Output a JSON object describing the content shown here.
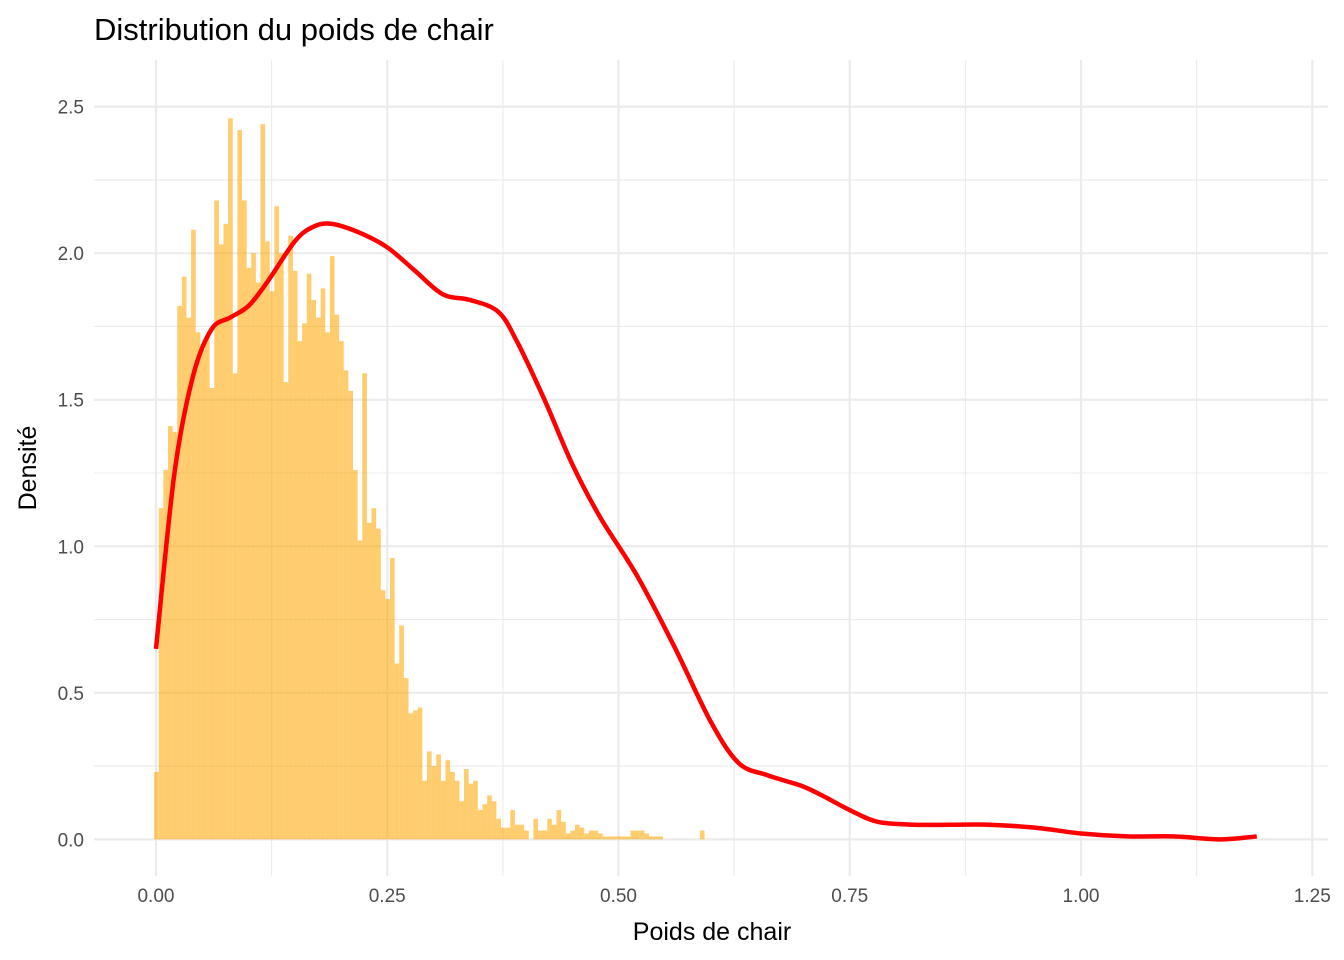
{
  "chart_data": {
    "type": "histogram",
    "title": "Distribution du poids de chair",
    "xlabel": "Poids de chair",
    "ylabel": "Densité",
    "xlim": [
      -0.067,
      1.267
    ],
    "ylim": [
      -0.125,
      2.625
    ],
    "x_ticks": [
      0.0,
      0.25,
      0.5,
      0.75,
      1.0,
      1.25
    ],
    "x_tick_labels": [
      "0.00",
      "0.25",
      "0.50",
      "0.75",
      "1.00",
      "1.25"
    ],
    "y_ticks": [
      0.0,
      0.5,
      1.0,
      1.5,
      2.0,
      2.5
    ],
    "y_tick_labels": [
      "0.0",
      "0.5",
      "1.0",
      "1.5",
      "2.0",
      "2.5"
    ],
    "grid": true,
    "legend": "none",
    "histogram": {
      "bin_start": -0.002,
      "bin_width": 0.005,
      "fill_color": "#FFA500",
      "fill_opacity": 0.57,
      "values": [
        0.23,
        1.13,
        1.26,
        1.41,
        1.39,
        1.82,
        1.92,
        1.78,
        2.08,
        1.73,
        1.67,
        1.72,
        1.54,
        2.18,
        2.03,
        2.1,
        2.46,
        1.59,
        2.42,
        2.18,
        1.95,
        2.0,
        1.9,
        2.44,
        2.04,
        1.87,
        2.16,
        2.0,
        1.56,
        2.06,
        1.94,
        1.7,
        1.76,
        1.93,
        1.84,
        1.78,
        1.88,
        1.73,
        1.99,
        1.79,
        1.7,
        1.6,
        1.53,
        1.26,
        1.02,
        1.59,
        1.08,
        1.13,
        1.06,
        0.85,
        0.82,
        0.96,
        0.6,
        0.73,
        0.55,
        0.43,
        0.44,
        0.45,
        0.2,
        0.3,
        0.25,
        0.29,
        0.2,
        0.27,
        0.23,
        0.2,
        0.13,
        0.24,
        0.19,
        0.2,
        0.1,
        0.12,
        0.15,
        0.13,
        0.07,
        0.04,
        0.04,
        0.1,
        0.05,
        0.05,
        0.03,
        0.0,
        0.07,
        0.03,
        0.03,
        0.07,
        0.05,
        0.1,
        0.06,
        0.02,
        0.03,
        0.05,
        0.04,
        0.02,
        0.03,
        0.03,
        0.02,
        0.01,
        0.01,
        0.01,
        0.01,
        0.01,
        0.01,
        0.03,
        0.03,
        0.03,
        0.02,
        0.01,
        0.01,
        0.01,
        0.0,
        0.0,
        0.0,
        0.0,
        0.0,
        0.0,
        0.0,
        0.0,
        0.03
      ]
    },
    "density_curve": {
      "color": "#FF0000",
      "x": [
        0.0,
        0.02,
        0.04,
        0.06,
        0.08,
        0.1,
        0.12,
        0.15,
        0.17,
        0.19,
        0.22,
        0.25,
        0.28,
        0.31,
        0.34,
        0.37,
        0.39,
        0.42,
        0.45,
        0.48,
        0.52,
        0.56,
        0.6,
        0.63,
        0.66,
        0.68,
        0.7,
        0.72,
        0.75,
        0.78,
        0.82,
        0.86,
        0.9,
        0.95,
        1.0,
        1.05,
        1.1,
        1.15,
        1.19
      ],
      "y": [
        0.65,
        1.25,
        1.58,
        1.74,
        1.78,
        1.82,
        1.9,
        2.04,
        2.09,
        2.1,
        2.07,
        2.02,
        1.94,
        1.86,
        1.84,
        1.8,
        1.7,
        1.5,
        1.28,
        1.1,
        0.9,
        0.66,
        0.4,
        0.26,
        0.22,
        0.2,
        0.18,
        0.15,
        0.1,
        0.06,
        0.05,
        0.05,
        0.05,
        0.04,
        0.02,
        0.01,
        0.01,
        0.0,
        0.01
      ]
    }
  }
}
